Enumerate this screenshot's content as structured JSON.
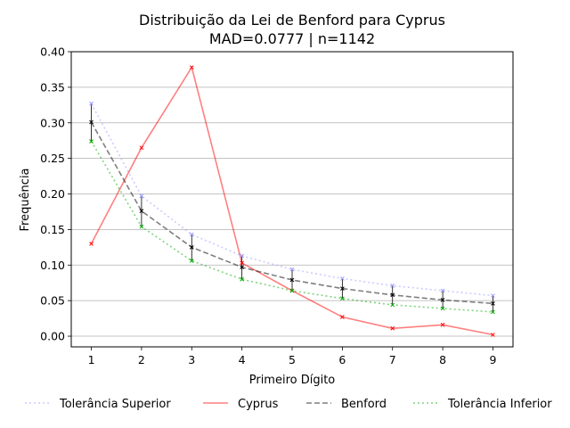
{
  "chart_data": {
    "type": "line",
    "title": "Distribuição da Lei de Benford para Cyprus",
    "subtitle": "MAD=0.0777 | n=1142",
    "xlabel": "Primeiro Dígito",
    "ylabel": "Frequência",
    "x": [
      1,
      2,
      3,
      4,
      5,
      6,
      7,
      8,
      9
    ],
    "xlim": [
      0.6,
      9.4
    ],
    "ylim": [
      -0.015,
      0.4
    ],
    "yticks": [
      "0.00",
      "0.05",
      "0.10",
      "0.15",
      "0.20",
      "0.25",
      "0.30",
      "0.35",
      "0.40"
    ],
    "grid": "horizontal",
    "legend_position": "bottom",
    "series": [
      {
        "name": "Tolerância Superior",
        "color": "#9999ff",
        "style": "dotted",
        "marker": "x",
        "values": [
          0.327,
          0.197,
          0.143,
          0.113,
          0.094,
          0.081,
          0.071,
          0.064,
          0.057
        ]
      },
      {
        "name": "Cyprus",
        "color": "#ff0000",
        "style": "solid",
        "marker": "x",
        "values": [
          0.13,
          0.265,
          0.378,
          0.103,
          0.064,
          0.027,
          0.011,
          0.016,
          0.002
        ]
      },
      {
        "name": "Benford",
        "color": "#000000",
        "style": "dashed",
        "marker": "x",
        "values": [
          0.301,
          0.176,
          0.125,
          0.097,
          0.079,
          0.067,
          0.058,
          0.051,
          0.046
        ]
      },
      {
        "name": "Tolerância Inferior",
        "color": "#00aa00",
        "style": "dotted",
        "marker": "x",
        "values": [
          0.274,
          0.154,
          0.106,
          0.08,
          0.064,
          0.053,
          0.044,
          0.039,
          0.034
        ]
      }
    ]
  }
}
